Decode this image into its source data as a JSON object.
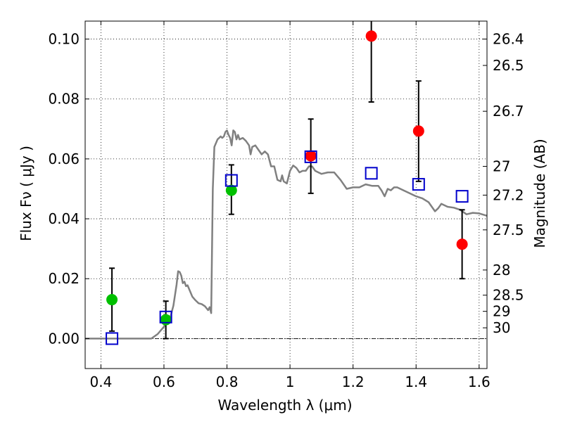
{
  "chart_data": {
    "type": "scatter",
    "xlabel": "Wavelength  λ (μm)",
    "ylabel": "Flux  Fν  ( μJy )",
    "ylabel_right": "Magnitude (AB)",
    "xlim": [
      0.35,
      1.625
    ],
    "ylim": [
      -0.01,
      0.106
    ],
    "x_ticks": [
      0.4,
      0.6,
      0.8,
      1.0,
      1.2,
      1.4,
      1.6
    ],
    "x_tick_labels": [
      "0.4",
      "0.6",
      "0.8",
      "1",
      "1.2",
      "1.4",
      "1.6"
    ],
    "y_ticks": [
      0.0,
      0.02,
      0.04,
      0.06,
      0.08,
      0.1
    ],
    "y_tick_labels": [
      "0.00",
      "0.02",
      "0.04",
      "0.06",
      "0.08",
      "0.10"
    ],
    "mag_ticks": [
      {
        "label": "26.4",
        "flux": 0.1
      },
      {
        "label": "26.5",
        "flux": 0.0912
      },
      {
        "label": "26.7",
        "flux": 0.0759
      },
      {
        "label": "27",
        "flux": 0.0575
      },
      {
        "label": "27.2",
        "flux": 0.0479
      },
      {
        "label": "27.5",
        "flux": 0.0363
      },
      {
        "label": "28",
        "flux": 0.0229
      },
      {
        "label": "28.5",
        "flux": 0.0145
      },
      {
        "label": "29",
        "flux": 0.0091
      },
      {
        "label": "30",
        "flux": 0.0036
      }
    ],
    "grid": true,
    "series": [
      {
        "name": "green",
        "color": "#00c000",
        "marker": "circle",
        "points": [
          {
            "x": 0.435,
            "y": 0.013
          },
          {
            "x": 0.606,
            "y": 0.0063
          },
          {
            "x": 0.814,
            "y": 0.0495
          }
        ]
      },
      {
        "name": "red",
        "color": "#ff0000",
        "marker": "circle",
        "points": [
          {
            "x": 1.066,
            "y": 0.061
          },
          {
            "x": 1.258,
            "y": 0.101
          },
          {
            "x": 1.408,
            "y": 0.0693
          },
          {
            "x": 1.546,
            "y": 0.0315
          }
        ]
      },
      {
        "name": "model",
        "color": "#0000cc",
        "marker": "open-square",
        "points": [
          {
            "x": 0.435,
            "y": 0.0
          },
          {
            "x": 0.606,
            "y": 0.0072
          },
          {
            "x": 0.814,
            "y": 0.0528
          },
          {
            "x": 1.066,
            "y": 0.0607
          },
          {
            "x": 1.258,
            "y": 0.0552
          },
          {
            "x": 1.408,
            "y": 0.0515
          },
          {
            "x": 1.546,
            "y": 0.0475
          }
        ]
      }
    ],
    "error_bars": [
      {
        "x": 0.435,
        "low": 0.0025,
        "high": 0.0235
      },
      {
        "x": 0.606,
        "low": 0.0,
        "high": 0.0125
      },
      {
        "x": 0.814,
        "low": 0.0415,
        "high": 0.058
      },
      {
        "x": 1.066,
        "low": 0.0485,
        "high": 0.0733
      },
      {
        "x": 1.258,
        "low": 0.079,
        "high": 0.108
      },
      {
        "x": 1.408,
        "low": 0.0525,
        "high": 0.086
      },
      {
        "x": 1.546,
        "low": 0.02,
        "high": 0.043
      }
    ],
    "sed_curve": [
      [
        0.35,
        0.0
      ],
      [
        0.56,
        0.0
      ],
      [
        0.58,
        0.0015
      ],
      [
        0.6,
        0.004
      ],
      [
        0.62,
        0.007
      ],
      [
        0.63,
        0.011
      ],
      [
        0.64,
        0.018
      ],
      [
        0.645,
        0.0225
      ],
      [
        0.65,
        0.0222
      ],
      [
        0.655,
        0.021
      ],
      [
        0.66,
        0.0185
      ],
      [
        0.665,
        0.019
      ],
      [
        0.67,
        0.0175
      ],
      [
        0.675,
        0.0178
      ],
      [
        0.68,
        0.0165
      ],
      [
        0.69,
        0.014
      ],
      [
        0.7,
        0.0128
      ],
      [
        0.71,
        0.0118
      ],
      [
        0.72,
        0.0115
      ],
      [
        0.73,
        0.0108
      ],
      [
        0.74,
        0.0095
      ],
      [
        0.745,
        0.0105
      ],
      [
        0.75,
        0.0085
      ],
      [
        0.755,
        0.05
      ],
      [
        0.76,
        0.064
      ],
      [
        0.77,
        0.0665
      ],
      [
        0.78,
        0.0675
      ],
      [
        0.785,
        0.067
      ],
      [
        0.79,
        0.0675
      ],
      [
        0.795,
        0.069
      ],
      [
        0.8,
        0.0695
      ],
      [
        0.805,
        0.068
      ],
      [
        0.81,
        0.067
      ],
      [
        0.815,
        0.0645
      ],
      [
        0.82,
        0.0695
      ],
      [
        0.825,
        0.069
      ],
      [
        0.83,
        0.0665
      ],
      [
        0.835,
        0.068
      ],
      [
        0.84,
        0.0665
      ],
      [
        0.85,
        0.067
      ],
      [
        0.86,
        0.066
      ],
      [
        0.87,
        0.0645
      ],
      [
        0.875,
        0.0615
      ],
      [
        0.88,
        0.064
      ],
      [
        0.89,
        0.0645
      ],
      [
        0.9,
        0.063
      ],
      [
        0.91,
        0.0615
      ],
      [
        0.92,
        0.0625
      ],
      [
        0.93,
        0.0615
      ],
      [
        0.94,
        0.0575
      ],
      [
        0.95,
        0.0575
      ],
      [
        0.96,
        0.053
      ],
      [
        0.97,
        0.0525
      ],
      [
        0.975,
        0.0545
      ],
      [
        0.98,
        0.0525
      ],
      [
        0.99,
        0.0518
      ],
      [
        1.0,
        0.056
      ],
      [
        1.01,
        0.0578
      ],
      [
        1.02,
        0.057
      ],
      [
        1.03,
        0.0555
      ],
      [
        1.04,
        0.056
      ],
      [
        1.05,
        0.056
      ],
      [
        1.06,
        0.0575
      ],
      [
        1.07,
        0.0575
      ],
      [
        1.08,
        0.056
      ],
      [
        1.09,
        0.0555
      ],
      [
        1.1,
        0.055
      ],
      [
        1.12,
        0.0555
      ],
      [
        1.14,
        0.0555
      ],
      [
        1.16,
        0.053
      ],
      [
        1.18,
        0.05
      ],
      [
        1.2,
        0.0505
      ],
      [
        1.22,
        0.0505
      ],
      [
        1.24,
        0.0515
      ],
      [
        1.26,
        0.051
      ],
      [
        1.28,
        0.051
      ],
      [
        1.29,
        0.0495
      ],
      [
        1.3,
        0.0475
      ],
      [
        1.31,
        0.05
      ],
      [
        1.32,
        0.0495
      ],
      [
        1.33,
        0.0505
      ],
      [
        1.34,
        0.0505
      ],
      [
        1.36,
        0.0495
      ],
      [
        1.38,
        0.0485
      ],
      [
        1.4,
        0.0475
      ],
      [
        1.42,
        0.0468
      ],
      [
        1.44,
        0.0455
      ],
      [
        1.46,
        0.0425
      ],
      [
        1.47,
        0.0435
      ],
      [
        1.48,
        0.045
      ],
      [
        1.5,
        0.044
      ],
      [
        1.52,
        0.0437
      ],
      [
        1.54,
        0.043
      ],
      [
        1.56,
        0.0415
      ],
      [
        1.58,
        0.042
      ],
      [
        1.6,
        0.0418
      ],
      [
        1.625,
        0.041
      ]
    ],
    "sed_color": "#808080"
  }
}
